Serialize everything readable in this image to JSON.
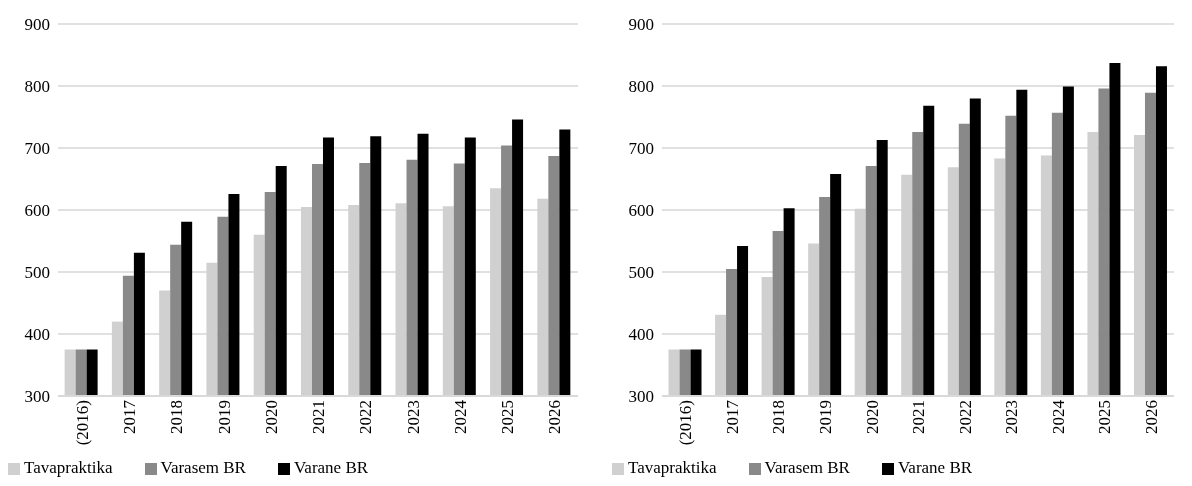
{
  "chart_data": [
    {
      "type": "bar",
      "categories": [
        "(2016)",
        "2017",
        "2018",
        "2019",
        "2020",
        "2021",
        "2022",
        "2023",
        "2024",
        "2025",
        "2026"
      ],
      "series": [
        {
          "name": "Tavapraktika",
          "color": "#d0d0d0",
          "values": [
            375,
            420,
            470,
            515,
            560,
            605,
            608,
            611,
            606,
            635,
            618
          ]
        },
        {
          "name": "Varasem BR",
          "color": "#898989",
          "values": [
            375,
            494,
            544,
            589,
            629,
            674,
            676,
            681,
            675,
            704,
            687
          ]
        },
        {
          "name": "Varane BR",
          "color": "#000000",
          "values": [
            375,
            531,
            581,
            626,
            671,
            717,
            719,
            723,
            717,
            746,
            730
          ]
        }
      ],
      "ylim": [
        300,
        900
      ],
      "yticks": [
        300,
        400,
        500,
        600,
        700,
        800,
        900
      ],
      "grid": "y",
      "legend": "bottom"
    },
    {
      "type": "bar",
      "categories": [
        "(2016)",
        "2017",
        "2018",
        "2019",
        "2020",
        "2021",
        "2022",
        "2023",
        "2024",
        "2025",
        "2026"
      ],
      "series": [
        {
          "name": "Tavapraktika",
          "color": "#d0d0d0",
          "values": [
            375,
            431,
            492,
            546,
            602,
            657,
            669,
            683,
            688,
            726,
            721
          ]
        },
        {
          "name": "Varasem BR",
          "color": "#898989",
          "values": [
            375,
            505,
            566,
            621,
            671,
            726,
            739,
            752,
            757,
            796,
            789
          ]
        },
        {
          "name": "Varane BR",
          "color": "#000000",
          "values": [
            375,
            542,
            603,
            658,
            713,
            768,
            780,
            794,
            799,
            837,
            832
          ]
        }
      ],
      "ylim": [
        300,
        900
      ],
      "yticks": [
        300,
        400,
        500,
        600,
        700,
        800,
        900
      ],
      "grid": "y",
      "legend": "bottom"
    }
  ]
}
